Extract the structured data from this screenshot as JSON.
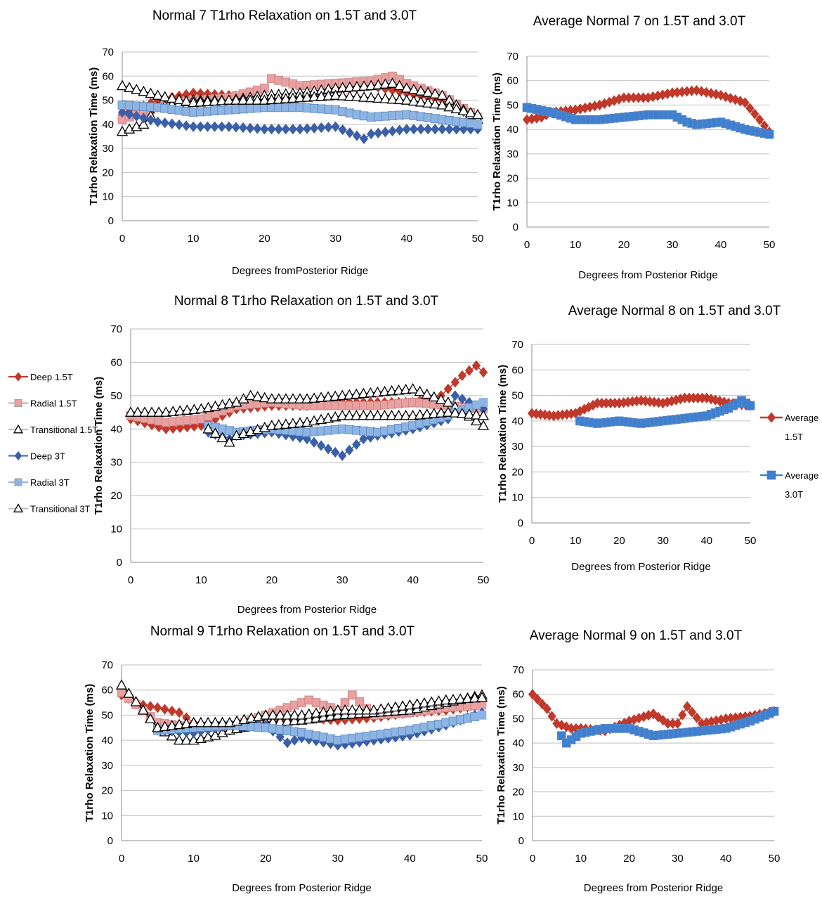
{
  "chart_data": [
    {
      "id": "n7",
      "type": "line",
      "title": "Normal 7 T1rho Relaxation on 1.5T and 3.0T",
      "xlabel": "Degrees fromPosterior Ridge",
      "ylabel": "T1rho Relaxation Time (ms)",
      "xlim": [
        0,
        50
      ],
      "ylim": [
        0,
        70
      ],
      "xticks": [
        0,
        10,
        20,
        30,
        40,
        50
      ],
      "yticks": [
        0,
        10,
        20,
        30,
        40,
        50,
        60,
        70
      ],
      "grid": true,
      "legend": "shared-left",
      "series": [
        {
          "name": "Deep 1.5T",
          "marker": "diamond",
          "color": "#c0392b",
          "x": [
            0,
            5,
            10,
            15,
            20,
            25,
            30,
            35,
            40,
            45,
            50
          ],
          "y": [
            44,
            50,
            53,
            52,
            51,
            52,
            54,
            56,
            53,
            50,
            42
          ]
        },
        {
          "name": "Radial 1.5T",
          "marker": "square",
          "color": "#e8a0a0",
          "x": [
            0,
            5,
            10,
            15,
            20,
            21,
            25,
            30,
            35,
            38,
            40,
            45,
            50
          ],
          "y": [
            42,
            47,
            50,
            51,
            55,
            59,
            56,
            57,
            58,
            60,
            57,
            52,
            43
          ]
        },
        {
          "name": "Transitional 1.5T",
          "marker": "triangle",
          "color": "#ffffff",
          "x": [
            0,
            3,
            5,
            10,
            15,
            20,
            25,
            30,
            35,
            38,
            40,
            45,
            50
          ],
          "y": [
            37,
            40,
            47,
            50,
            50,
            52,
            53,
            55,
            56,
            57,
            55,
            52,
            42
          ]
        },
        {
          "name": "Deep 3T",
          "marker": "diamond",
          "color": "#3b5fa8",
          "x": [
            0,
            5,
            10,
            15,
            20,
            25,
            30,
            34,
            35,
            40,
            45,
            50
          ],
          "y": [
            45,
            41,
            39,
            39,
            38,
            38,
            39,
            34,
            36,
            38,
            38,
            38
          ]
        },
        {
          "name": "Radial 3T",
          "marker": "square",
          "color": "#8db4e2",
          "x": [
            0,
            5,
            10,
            15,
            20,
            25,
            30,
            33,
            35,
            40,
            45,
            50
          ],
          "y": [
            48,
            47,
            45,
            46,
            47,
            47,
            46,
            44,
            43,
            44,
            42,
            40
          ]
        },
        {
          "name": "Transitional 3T",
          "marker": "triangle",
          "color": "#ffffff",
          "x": [
            0,
            5,
            10,
            15,
            20,
            25,
            30,
            35,
            40,
            45,
            50
          ],
          "y": [
            56,
            52,
            49,
            50,
            50,
            51,
            52,
            51,
            50,
            48,
            44
          ]
        }
      ]
    },
    {
      "id": "a7",
      "type": "line",
      "title": "Average Normal 7 on 1.5T and 3.0T",
      "xlabel": "Degrees from Posterior Ridge",
      "ylabel": "T1rho Relaxation Time (ms)",
      "xlim": [
        0,
        50
      ],
      "ylim": [
        0,
        70
      ],
      "xticks": [
        0,
        10,
        20,
        30,
        40,
        50
      ],
      "yticks": [
        0,
        10,
        20,
        30,
        40,
        50,
        60,
        70
      ],
      "grid": true,
      "series": [
        {
          "name": "Average 1.5T",
          "marker": "diamond",
          "color": "#c0392b",
          "x": [
            0,
            3,
            5,
            10,
            15,
            20,
            25,
            30,
            35,
            40,
            45,
            48,
            50
          ],
          "y": [
            44,
            45,
            47,
            48,
            50,
            53,
            53,
            55,
            56,
            54,
            51,
            44,
            39
          ]
        },
        {
          "name": "Average 3.0T",
          "marker": "square",
          "color": "#3f7fcf",
          "x": [
            0,
            5,
            10,
            15,
            20,
            25,
            30,
            33,
            35,
            40,
            45,
            50
          ],
          "y": [
            49,
            47,
            44,
            44,
            45,
            46,
            46,
            43,
            42,
            43,
            40,
            38
          ]
        }
      ]
    },
    {
      "id": "n8",
      "type": "line",
      "title": "Normal 8 T1rho Relaxation on 1.5T and 3.0T",
      "xlabel": "Degrees from Posterior Ridge",
      "ylabel": "T1rho Relaxation Time (ms)",
      "xlim": [
        0,
        50
      ],
      "ylim": [
        0,
        70
      ],
      "xticks": [
        0,
        10,
        20,
        30,
        40,
        50
      ],
      "yticks": [
        0,
        10,
        20,
        30,
        40,
        50,
        60,
        70
      ],
      "grid": true,
      "series": [
        {
          "name": "Deep 1.5T",
          "marker": "diamond",
          "color": "#c0392b",
          "x": [
            0,
            5,
            10,
            15,
            20,
            25,
            30,
            35,
            40,
            44,
            47,
            49,
            50
          ],
          "y": [
            43,
            40,
            41,
            46,
            47,
            47,
            48,
            48,
            48,
            50,
            56,
            59,
            57
          ]
        },
        {
          "name": "Radial 1.5T",
          "marker": "square",
          "color": "#e8a0a0",
          "x": [
            0,
            5,
            10,
            15,
            20,
            25,
            30,
            35,
            40,
            45,
            50
          ],
          "y": [
            44,
            42,
            43,
            47,
            48,
            47,
            47,
            47,
            48,
            47,
            46
          ]
        },
        {
          "name": "Transitional 1.5T",
          "marker": "triangle",
          "color": "#ffffff",
          "x": [
            0,
            5,
            10,
            15,
            17,
            20,
            25,
            30,
            35,
            40,
            45,
            50
          ],
          "y": [
            45,
            45,
            46,
            48,
            50,
            49,
            49,
            50,
            51,
            52,
            48,
            41
          ]
        },
        {
          "name": "Deep 3T",
          "marker": "diamond",
          "color": "#3b5fa8",
          "x": [
            11,
            14,
            15,
            20,
            25,
            30,
            33,
            35,
            40,
            45,
            46,
            50
          ],
          "y": [
            39,
            37,
            38,
            39,
            37,
            32,
            37,
            38,
            40,
            43,
            50,
            46
          ]
        },
        {
          "name": "Radial 3T",
          "marker": "square",
          "color": "#8db4e2",
          "x": [
            11,
            15,
            20,
            25,
            30,
            35,
            40,
            45,
            50
          ],
          "y": [
            41,
            39,
            40,
            39,
            40,
            39,
            41,
            44,
            48
          ]
        },
        {
          "name": "Transitional 3T",
          "marker": "triangle",
          "color": "#ffffff",
          "x": [
            11,
            14,
            15,
            20,
            25,
            30,
            35,
            40,
            45,
            50
          ],
          "y": [
            40,
            36,
            38,
            41,
            42,
            44,
            44,
            44,
            45,
            44
          ]
        }
      ]
    },
    {
      "id": "a8",
      "type": "line",
      "title": "Average Normal 8 on 1.5T and 3.0T",
      "xlabel": "Degrees from Posterior Ridge",
      "ylabel": "T1rho Relaxation Time (ms)",
      "xlim": [
        0,
        50
      ],
      "ylim": [
        0,
        70
      ],
      "xticks": [
        0,
        10,
        20,
        30,
        40,
        50
      ],
      "yticks": [
        0,
        10,
        20,
        30,
        40,
        50,
        60,
        70
      ],
      "grid": true,
      "legend": "right",
      "series": [
        {
          "name": "Average 1.5T",
          "marker": "diamond",
          "color": "#c0392b",
          "x": [
            0,
            5,
            10,
            15,
            20,
            25,
            30,
            35,
            40,
            45,
            50
          ],
          "y": [
            43,
            42,
            43,
            47,
            47,
            48,
            47,
            49,
            49,
            47,
            46
          ]
        },
        {
          "name": "Average 3.0T",
          "marker": "square",
          "color": "#3f7fcf",
          "x": [
            11,
            15,
            20,
            25,
            30,
            35,
            40,
            45,
            48,
            50
          ],
          "y": [
            40,
            39,
            40,
            39,
            40,
            41,
            42,
            45,
            48,
            46
          ]
        }
      ]
    },
    {
      "id": "n9",
      "type": "line",
      "title": "Normal 9 T1rho Relaxation on 1.5T and 3.0T",
      "xlabel": "Degrees from Posterior Ridge",
      "ylabel": "T1rho Relaxation Time (ms)",
      "xlim": [
        0,
        50
      ],
      "ylim": [
        0,
        70
      ],
      "xticks": [
        0,
        10,
        20,
        30,
        40,
        50
      ],
      "yticks": [
        0,
        10,
        20,
        30,
        40,
        50,
        60,
        70
      ],
      "grid": true,
      "series": [
        {
          "name": "Deep 1.5T",
          "marker": "diamond",
          "color": "#c0392b",
          "x": [
            0,
            3,
            5,
            8,
            10,
            15,
            20,
            25,
            30,
            35,
            40,
            45,
            50
          ],
          "y": [
            58,
            54,
            53,
            51,
            47,
            44,
            47,
            49,
            48,
            49,
            51,
            52,
            54
          ]
        },
        {
          "name": "Radial 1.5T",
          "marker": "square",
          "color": "#e8a0a0",
          "x": [
            0,
            5,
            10,
            15,
            20,
            25,
            26,
            30,
            32,
            35,
            40,
            45,
            50
          ],
          "y": [
            59,
            47,
            45,
            45,
            50,
            55,
            56,
            52,
            58,
            50,
            51,
            53,
            54
          ]
        },
        {
          "name": "Transitional 1.5T",
          "marker": "triangle",
          "color": "#ffffff",
          "x": [
            0,
            3,
            5,
            8,
            10,
            13,
            15,
            20,
            25,
            30,
            35,
            40,
            45,
            50
          ],
          "y": [
            62,
            52,
            45,
            40,
            40,
            42,
            44,
            47,
            48,
            50,
            51,
            52,
            55,
            58
          ]
        },
        {
          "name": "Deep 3T",
          "marker": "diamond",
          "color": "#3b5fa8",
          "x": [
            5,
            10,
            15,
            20,
            23,
            25,
            30,
            35,
            40,
            45,
            50
          ],
          "y": [
            44,
            43,
            46,
            46,
            39,
            41,
            38,
            40,
            42,
            46,
            51
          ]
        },
        {
          "name": "Radial 3T",
          "marker": "square",
          "color": "#8db4e2",
          "x": [
            5,
            10,
            15,
            20,
            25,
            30,
            35,
            40,
            45,
            50
          ],
          "y": [
            44,
            45,
            46,
            45,
            43,
            40,
            42,
            44,
            47,
            50
          ]
        },
        {
          "name": "Transitional 3T",
          "marker": "triangle",
          "color": "#ffffff",
          "x": [
            5,
            10,
            15,
            20,
            25,
            30,
            35,
            40,
            45,
            50
          ],
          "y": [
            45,
            47,
            47,
            50,
            50,
            52,
            52,
            54,
            56,
            57
          ]
        }
      ]
    },
    {
      "id": "a9",
      "type": "line",
      "title": "Average Normal 9 on 1.5T and 3.0T",
      "xlabel": "Degrees from Posterior Ridge",
      "ylabel": "T1rho Relaxation Time (ms)",
      "xlim": [
        0,
        50
      ],
      "ylim": [
        0,
        70
      ],
      "xticks": [
        0,
        10,
        20,
        30,
        40,
        50
      ],
      "yticks": [
        0,
        10,
        20,
        30,
        40,
        50,
        60,
        70
      ],
      "grid": true,
      "series": [
        {
          "name": "Average 1.5T",
          "marker": "diamond",
          "color": "#c0392b",
          "x": [
            0,
            3,
            5,
            8,
            10,
            15,
            20,
            25,
            28,
            30,
            32,
            35,
            40,
            45,
            50
          ],
          "y": [
            60,
            54,
            48,
            46,
            46,
            45,
            49,
            52,
            48,
            48,
            55,
            48,
            50,
            51,
            53
          ]
        },
        {
          "name": "Average 3.0T",
          "marker": "square",
          "color": "#3f7fcf",
          "x": [
            6,
            7,
            10,
            15,
            20,
            25,
            30,
            35,
            40,
            45,
            50
          ],
          "y": [
            43,
            40,
            44,
            46,
            46,
            43,
            44,
            45,
            46,
            49,
            53
          ]
        }
      ]
    }
  ],
  "legends": {
    "shared": [
      "Deep 1.5T",
      "Radial 1.5T",
      "Transitional 1.5T",
      "Deep 3T",
      "Radial 3T",
      "Transitional 3T"
    ],
    "average": [
      "Average 1.5T",
      "Average 3.0T"
    ]
  }
}
